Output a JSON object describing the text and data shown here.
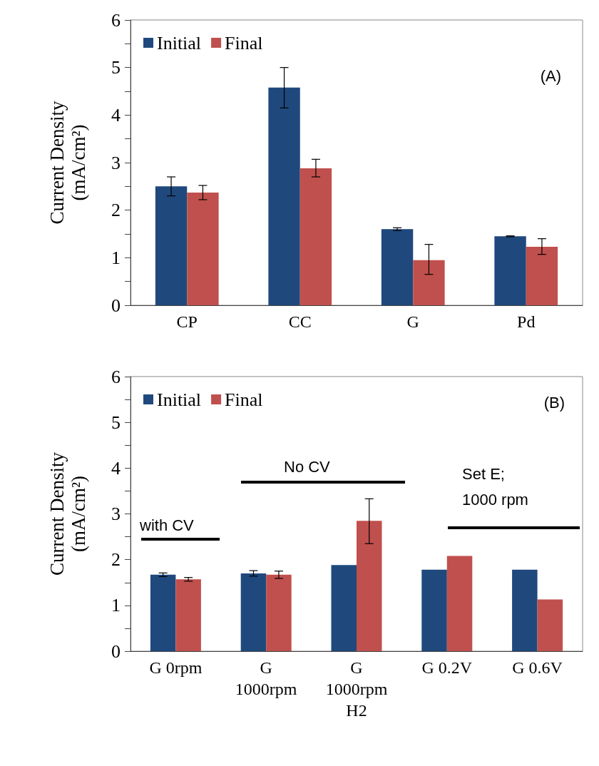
{
  "chart_data": [
    {
      "type": "bar",
      "ylabel": "Current Density\n(mA/cm²)",
      "categories": [
        "CP",
        "CC",
        "G",
        "Pd"
      ],
      "annotations": [
        "(A)"
      ],
      "legend": "top left",
      "ylim": [
        0,
        6
      ],
      "yticks": [
        0,
        {
          "value": 0.5,
          "label": null
        },
        1,
        {
          "value": 1.5,
          "label": null
        },
        2,
        {
          "value": 2.5,
          "label": null
        },
        3,
        {
          "value": 3.5,
          "label": null
        },
        4,
        {
          "value": 4.5,
          "label": null
        },
        5,
        {
          "value": 5.5,
          "label": null
        },
        6
      ],
      "series": [
        {
          "name": "Initial",
          "color": "#1f497d",
          "values": [
            2.5,
            4.58,
            1.6,
            1.45
          ],
          "errors": [
            [
              2.3,
              2.7
            ],
            [
              4.15,
              5.0
            ],
            [
              1.57,
              1.63
            ],
            [
              1.44,
              1.46
            ]
          ]
        },
        {
          "name": "Final",
          "color": "#c0504d",
          "values": [
            2.37,
            2.88,
            0.95,
            1.23
          ],
          "errors": [
            [
              2.22,
              2.52
            ],
            [
              2.7,
              3.07
            ],
            [
              0.65,
              1.28
            ],
            [
              1.07,
              1.4
            ]
          ]
        }
      ]
    },
    {
      "type": "bar",
      "ylabel": "Current Density\n(mA/cm²)",
      "categories": [
        "G 0rpm",
        "G\n1000rpm",
        "G\n1000rpm\nH2",
        "G 0.2V",
        "G 0.6V"
      ],
      "annotations": [
        "(B)",
        "with CV",
        "No CV",
        "Set E;\n1000 rpm"
      ],
      "legend": "top left",
      "ylim": [
        0,
        6
      ],
      "yticks": [
        0,
        {
          "value": 0.5,
          "label": null
        },
        1,
        {
          "value": 1.5,
          "label": null
        },
        2,
        {
          "value": 2.5,
          "label": null
        },
        3,
        {
          "value": 3.5,
          "label": null
        },
        4,
        {
          "value": 4.5,
          "label": null
        },
        5,
        {
          "value": 5.5,
          "label": null
        },
        6
      ],
      "series": [
        {
          "name": "Initial",
          "color": "#1f497d",
          "values": [
            1.67,
            1.7,
            1.88,
            1.78,
            1.78
          ],
          "errors": [
            [
              1.63,
              1.71
            ],
            [
              1.64,
              1.76
            ],
            null,
            null,
            null
          ]
        },
        {
          "name": "Final",
          "color": "#c0504d",
          "values": [
            1.57,
            1.67,
            2.85,
            2.08,
            1.13
          ],
          "errors": [
            [
              1.53,
              1.61
            ],
            [
              1.59,
              1.75
            ],
            [
              2.35,
              3.33
            ],
            null,
            null
          ]
        }
      ]
    }
  ]
}
